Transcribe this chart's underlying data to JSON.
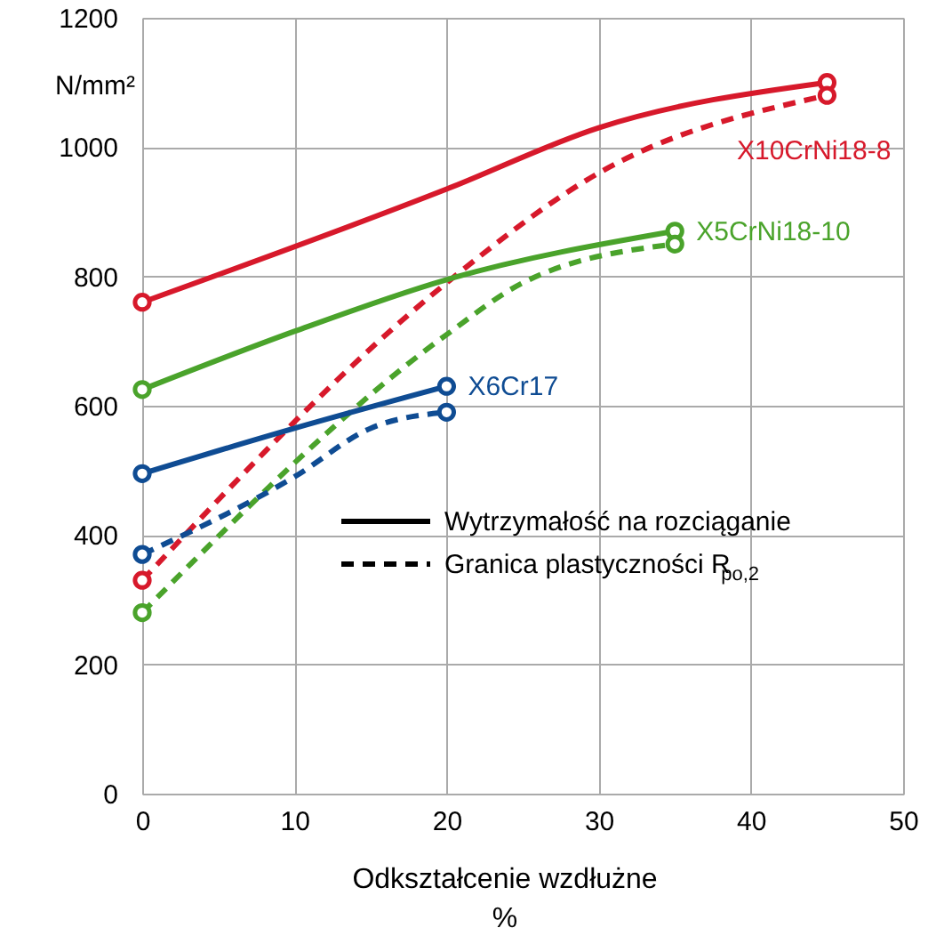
{
  "chart_data": {
    "type": "line",
    "xlabel": "Odkształcenie wzdłużne\n%",
    "ylabel": "N/mm²",
    "xlim": [
      0,
      50
    ],
    "xticks": [
      0,
      10,
      20,
      30,
      40,
      50
    ],
    "ylim": [
      0,
      1200
    ],
    "yticks": [
      0,
      200,
      400,
      600,
      800,
      1000,
      1200
    ],
    "grid": true,
    "marker": "circle",
    "annotations": [
      "Wytrzymałość na rozciąganie",
      "Granica plastyczności R$_{po,2}$"
    ],
    "series": [
      {
        "name": "X10CrNi18-8",
        "color": "#d7192b",
        "line_style": "solid",
        "x": [
          0,
          20,
          30,
          45
        ],
        "values": [
          760,
          935,
          1030,
          1100
        ]
      },
      {
        "color": "#d7192b",
        "line_style": "dashed",
        "x": [
          0,
          20,
          30,
          45
        ],
        "values": [
          330,
          790,
          960,
          1080
        ]
      },
      {
        "name": "X5CrNi18-10",
        "color": "#4aa32b",
        "line_style": "solid",
        "x": [
          0,
          10,
          20,
          35
        ],
        "values": [
          625,
          715,
          795,
          870
        ]
      },
      {
        "color": "#4aa32b",
        "line_style": "dashed",
        "x": [
          0,
          20,
          25,
          35
        ],
        "values": [
          280,
          710,
          790,
          850
        ]
      },
      {
        "name": "X6Cr17",
        "color": "#0f4c93",
        "line_style": "solid",
        "x": [
          0,
          10,
          20
        ],
        "values": [
          495,
          565,
          630
        ]
      },
      {
        "color": "#0f4c93",
        "line_style": "dashed",
        "x": [
          0,
          10,
          15,
          20
        ],
        "values": [
          370,
          490,
          565,
          590
        ]
      }
    ]
  }
}
